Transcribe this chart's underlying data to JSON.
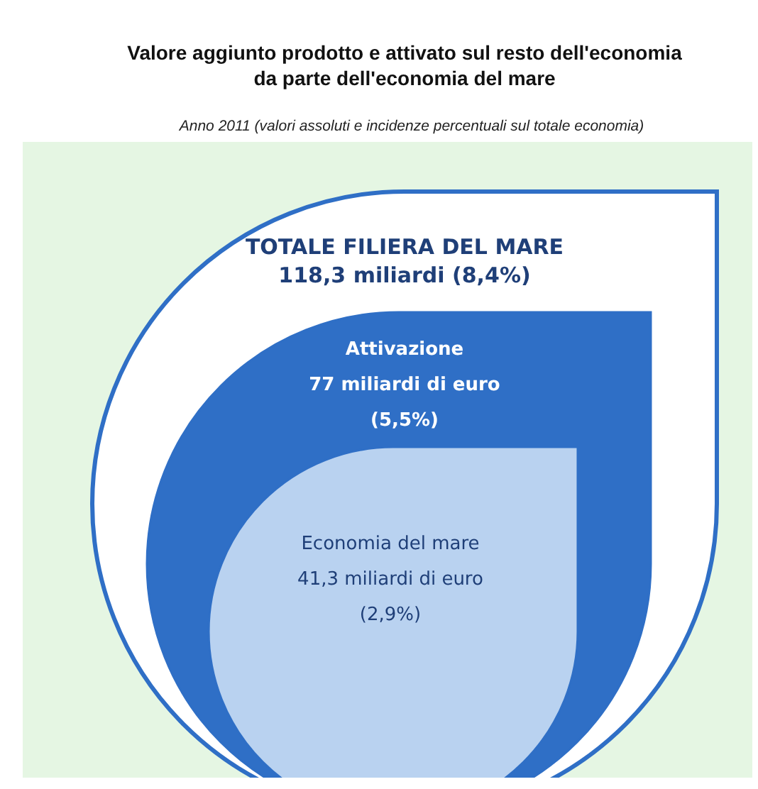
{
  "chart_data": {
    "type": "other",
    "title": "Valore aggiunto prodotto e attivato sul resto dell'economia\nda parte dell'economia del mare",
    "subtitle": "Anno 2011 (valori assoluti e incidenze percentuali sul totale economia)",
    "categories": [
      "TOTALE FILIERA DEL MARE",
      "Attivazione",
      "Economia del mare"
    ],
    "values": [
      118.3,
      77,
      41.3
    ],
    "value_labels": [
      "118,3 miliardi (8,4%)",
      "77 miliardi di euro\n(5,5%)",
      "41,3 miliardi di euro\n(2,9%)"
    ],
    "colors": [
      "#ffffff",
      "#2f6fc6",
      "#b9d2f0"
    ]
  }
}
